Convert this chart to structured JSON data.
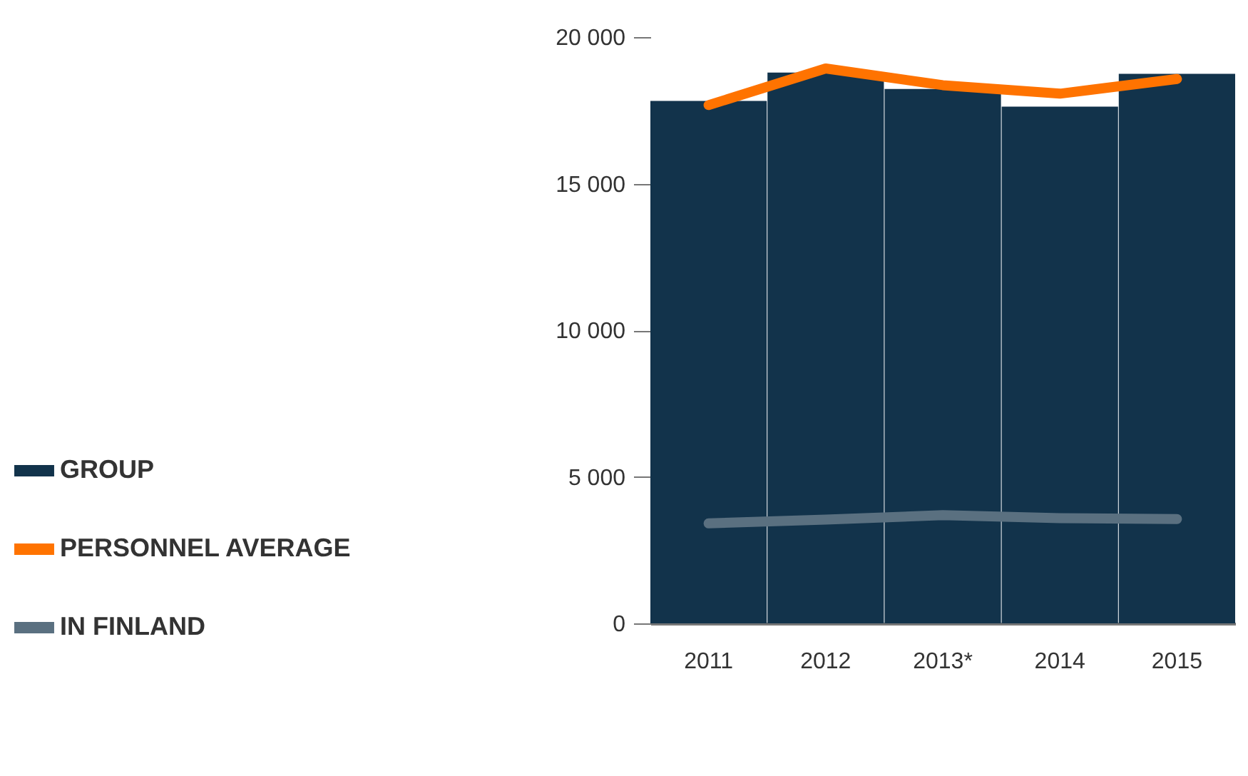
{
  "chart_data": {
    "type": "bar",
    "categories": [
      "2011",
      "2012",
      "2013*",
      "2014",
      "2015"
    ],
    "series": [
      {
        "name": "GROUP",
        "type": "bar",
        "color": "#12334b",
        "values": [
          17820,
          18790,
          18230,
          17630,
          18750
        ]
      },
      {
        "name": "PERSONNEL AVERAGE",
        "type": "line",
        "color": "#ff7300",
        "values": [
          17680,
          18930,
          18360,
          18070,
          18570
        ]
      },
      {
        "name": "IN FINLAND",
        "type": "line",
        "color": "#5a7080",
        "values": [
          3410,
          3540,
          3690,
          3590,
          3560
        ]
      }
    ],
    "ylim": [
      0,
      20000
    ],
    "yticks": [
      {
        "value": 0,
        "label": "0"
      },
      {
        "value": 5000,
        "label": "5 000"
      },
      {
        "value": 10000,
        "label": "10 000"
      },
      {
        "value": 15000,
        "label": "15 000"
      },
      {
        "value": 20000,
        "label": "20 000"
      }
    ],
    "grid": false,
    "legend": "left"
  }
}
